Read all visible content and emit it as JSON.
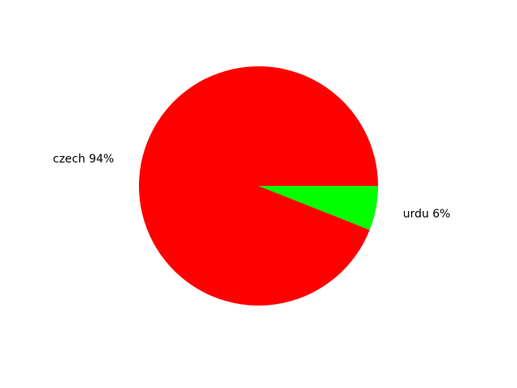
{
  "chart_data": {
    "type": "pie",
    "slices": [
      {
        "label": "czech",
        "value": 94,
        "display": "czech 94%",
        "color": "#ff0000"
      },
      {
        "label": "urdu",
        "value": 6,
        "display": "urdu 6%",
        "color": "#00ff00"
      }
    ]
  }
}
